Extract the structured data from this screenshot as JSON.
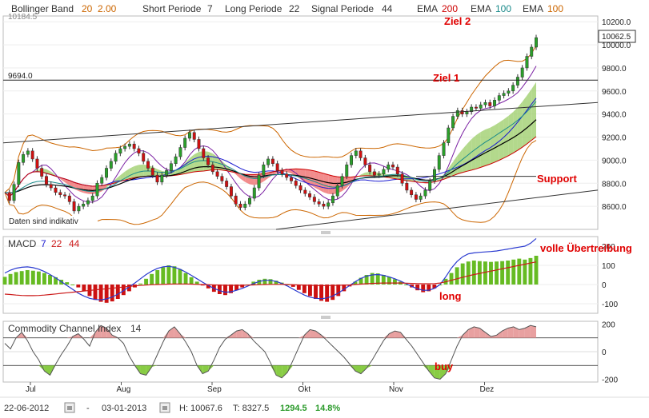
{
  "header": {
    "bollinger_label": "Bollinger Band",
    "bollinger_p1": "20",
    "bollinger_p2": "2.00",
    "short_label": "Short Periode",
    "short_val": "7",
    "long_label": "Long Periode",
    "long_val": "22",
    "signal_label": "Signal Periode",
    "signal_val": "44",
    "ema1_label": "EMA",
    "ema1_val": "200",
    "ema2_label": "EMA",
    "ema2_val": "100",
    "ema3_label": "EMA",
    "ema3_val": "100"
  },
  "colors": {
    "candle_up": "#2aa02a",
    "candle_down": "#d01010",
    "bollinger": "#cc6600",
    "short": "#7a1fa2",
    "long": "#1a1ad0",
    "signal": "#cc0000",
    "ema_black": "#000000",
    "ema_teal": "#1a8a8a",
    "cloud_green": "#99cc66",
    "cloud_red": "#ee6666",
    "macd_line": "#2a3ad0",
    "macd_signal": "#cc1a1a",
    "macd_up": "#66bb22",
    "macd_down": "#cc1111",
    "cci": "#555555",
    "cci_fill_up": "#e8a0a0",
    "cci_fill_down": "#88cc44"
  },
  "chart_data": [
    {
      "type": "line",
      "title": "",
      "ylim": [
        8400,
        10250
      ],
      "y_ticks": [
        "10200.0",
        "10000.0",
        "9800.0",
        "9600.0",
        "9400.0",
        "9200.0",
        "9000.0",
        "8800.0",
        "8600.0"
      ],
      "x_tick_labels": [
        "Jul",
        "Aug",
        "Sep",
        "Okt",
        "Nov",
        "Dez"
      ],
      "last_value_label": "10062.5",
      "truncated_top_label": "10184.5",
      "level_label": "9694.0",
      "level_value": 9694,
      "note": "Daten sind indikativ",
      "annotations": [
        "Ziel 2",
        "Ziel 1",
        "Support"
      ],
      "closes": [
        8720,
        8650,
        8790,
        8980,
        9050,
        9080,
        9010,
        8930,
        8860,
        8790,
        8760,
        8720,
        8700,
        8690,
        8640,
        8560,
        8600,
        8620,
        8650,
        8690,
        8800,
        8850,
        8930,
        8990,
        9060,
        9100,
        9120,
        9140,
        9100,
        9060,
        8990,
        8930,
        8870,
        8810,
        8870,
        8910,
        8970,
        9030,
        9110,
        9190,
        9240,
        9180,
        9100,
        9020,
        8960,
        8900,
        8860,
        8820,
        8770,
        8690,
        8620,
        8590,
        8620,
        8670,
        8760,
        8870,
        8960,
        9010,
        8970,
        8910,
        8880,
        8850,
        8820,
        8780,
        8740,
        8710,
        8680,
        8640,
        8620,
        8600,
        8630,
        8690,
        8780,
        8860,
        8960,
        9040,
        9080,
        9020,
        8960,
        8900,
        8870,
        8880,
        8920,
        8960,
        8940,
        8880,
        8800,
        8740,
        8700,
        8660,
        8690,
        8740,
        8820,
        8920,
        9040,
        9150,
        9280,
        9380,
        9430,
        9400,
        9420,
        9460,
        9450,
        9480,
        9500,
        9470,
        9520,
        9560,
        9580,
        9600,
        9650,
        9720,
        9800,
        9900,
        9980,
        10062.5
      ]
    },
    {
      "type": "bar",
      "title": "MACD",
      "params": [
        "7",
        "22",
        "44"
      ],
      "ylim": [
        -150,
        250
      ],
      "y_ticks": [
        "200",
        "100",
        "0",
        "-100"
      ],
      "annotations": [
        "volle Übertreibung",
        "long"
      ],
      "histogram": [
        40,
        55,
        65,
        70,
        75,
        72,
        68,
        60,
        50,
        38,
        25,
        12,
        0,
        -15,
        -35,
        -60,
        -80,
        -90,
        -95,
        -88,
        -75,
        -55,
        -35,
        -15,
        5,
        30,
        55,
        75,
        90,
        100,
        95,
        80,
        60,
        38,
        15,
        -5,
        -20,
        -38,
        -50,
        -55,
        -45,
        -30,
        -15,
        0,
        15,
        25,
        30,
        28,
        20,
        10,
        0,
        -12,
        -28,
        -45,
        -60,
        -75,
        -85,
        -90,
        -80,
        -60,
        -35,
        -10,
        15,
        35,
        50,
        60,
        58,
        50,
        40,
        28,
        15,
        0,
        -15,
        -30,
        -40,
        -35,
        -20,
        0,
        30,
        60,
        90,
        110,
        120,
        125,
        122,
        120,
        118,
        120,
        122,
        125,
        130,
        135,
        130,
        138,
        150
      ],
      "macd": [
        60,
        75,
        85,
        90,
        92,
        88,
        80,
        68,
        52,
        35,
        15,
        -5,
        -25,
        -45,
        -60,
        -72,
        -78,
        -80,
        -75,
        -65,
        -50,
        -32,
        -12,
        8,
        30,
        52,
        70,
        84,
        92,
        95,
        90,
        80,
        65,
        48,
        30,
        12,
        -5,
        -20,
        -32,
        -40,
        -38,
        -30,
        -20,
        -8,
        5,
        16,
        22,
        22,
        16,
        6,
        -8,
        -24,
        -40,
        -55,
        -66,
        -72,
        -74,
        -70,
        -60,
        -44,
        -25,
        -5,
        15,
        32,
        44,
        50,
        52,
        48,
        40,
        30,
        18,
        4,
        -10,
        -22,
        -30,
        -30,
        -20,
        0,
        40,
        85,
        120,
        145,
        160,
        165,
        168,
        170,
        172,
        175,
        180,
        185,
        190,
        195,
        200,
        215,
        240
      ],
      "signal": [
        -50,
        -52,
        -55,
        -57,
        -58,
        -58,
        -57,
        -55,
        -52,
        -49,
        -46,
        -43,
        -40,
        -37,
        -34,
        -31,
        -28,
        -25,
        -22,
        -19,
        -16,
        -13,
        -10,
        -7,
        -5,
        -3,
        -1,
        0,
        1,
        2,
        3,
        3,
        3,
        2,
        1,
        0,
        -1,
        -2,
        -3,
        -4,
        -4,
        -4,
        -4,
        -3,
        -2,
        -1,
        0,
        1,
        1,
        1,
        0,
        -1,
        -2,
        -3,
        -4,
        -5,
        -6,
        -6,
        -5,
        -4,
        -3,
        -2,
        0,
        2,
        4,
        6,
        7,
        8,
        8,
        8,
        8,
        7,
        6,
        5,
        4,
        4,
        5,
        8,
        14,
        22,
        30,
        38,
        45,
        52,
        58,
        64,
        70,
        76,
        82,
        88,
        94,
        100,
        106,
        112,
        118
      ]
    },
    {
      "type": "line",
      "title": "Commodity Channel Index",
      "params": [
        "14"
      ],
      "ylim": [
        -220,
        220
      ],
      "y_ticks": [
        "200",
        "0",
        "-200"
      ],
      "annotations": [
        "buy"
      ],
      "values": [
        60,
        20,
        100,
        140,
        80,
        0,
        -60,
        -140,
        -170,
        -90,
        -20,
        40,
        110,
        130,
        90,
        40,
        140,
        190,
        170,
        120,
        100,
        60,
        -30,
        -100,
        -160,
        -170,
        -110,
        -20,
        70,
        150,
        180,
        130,
        70,
        0,
        -100,
        -160,
        -140,
        -60,
        30,
        90,
        120,
        150,
        160,
        130,
        80,
        40,
        0,
        -80,
        -170,
        -190,
        -150,
        -60,
        30,
        120,
        160,
        150,
        120,
        80,
        40,
        0,
        -40,
        -90,
        -140,
        -160,
        -120,
        -60,
        10,
        80,
        130,
        150,
        140,
        90,
        40,
        -20,
        -80,
        -140,
        -190,
        -200,
        -160,
        -60,
        40,
        120,
        160,
        180,
        170,
        140,
        110,
        120,
        150,
        170,
        180,
        160,
        170,
        190,
        180
      ]
    }
  ],
  "footer": {
    "start_date": "22-06-2012",
    "separator": "-",
    "end_date": "03-01-2013",
    "high": "H: 10067.6",
    "low": "T: 8327.5",
    "change": "1294.5",
    "change_pct": "14.8%"
  }
}
